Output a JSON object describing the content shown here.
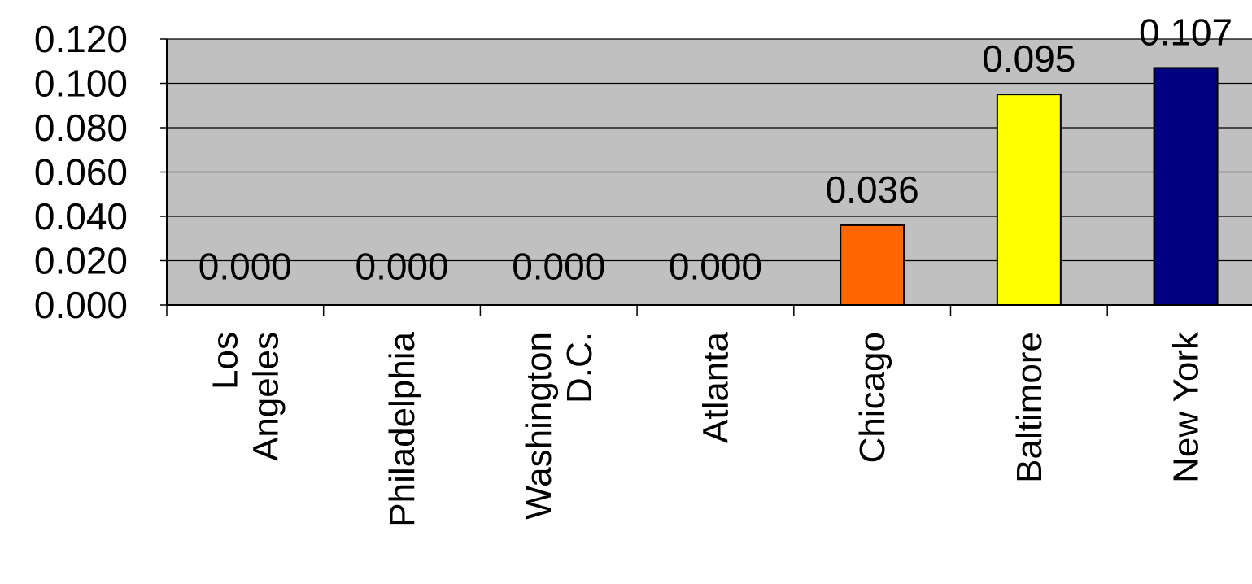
{
  "chart_data": {
    "type": "bar",
    "categories": [
      [
        "Los",
        "Angeles"
      ],
      [
        "Philadelphia"
      ],
      [
        "Washington",
        "D.C."
      ],
      [
        "Atlanta"
      ],
      [
        "Chicago"
      ],
      [
        "Baltimore"
      ],
      [
        "New York"
      ]
    ],
    "values": [
      0.0,
      0.0,
      0.0,
      0.0,
      0.036,
      0.095,
      0.107
    ],
    "data_labels": [
      "0.000",
      "0.000",
      "0.000",
      "0.000",
      "0.036",
      "0.095",
      "0.107"
    ],
    "bar_colors": [
      "#c0c0c0",
      "#c0c0c0",
      "#c0c0c0",
      "#c0c0c0",
      "#ff6600",
      "#ffff00",
      "#000080"
    ],
    "yticks": [
      "0.000",
      "0.020",
      "0.040",
      "0.060",
      "0.080",
      "0.100",
      "0.120"
    ],
    "ylim": [
      0,
      0.12
    ],
    "grid": true,
    "plot_background": "#c0c0c0",
    "title": "",
    "xlabel": "",
    "ylabel": "",
    "legend": "none"
  }
}
